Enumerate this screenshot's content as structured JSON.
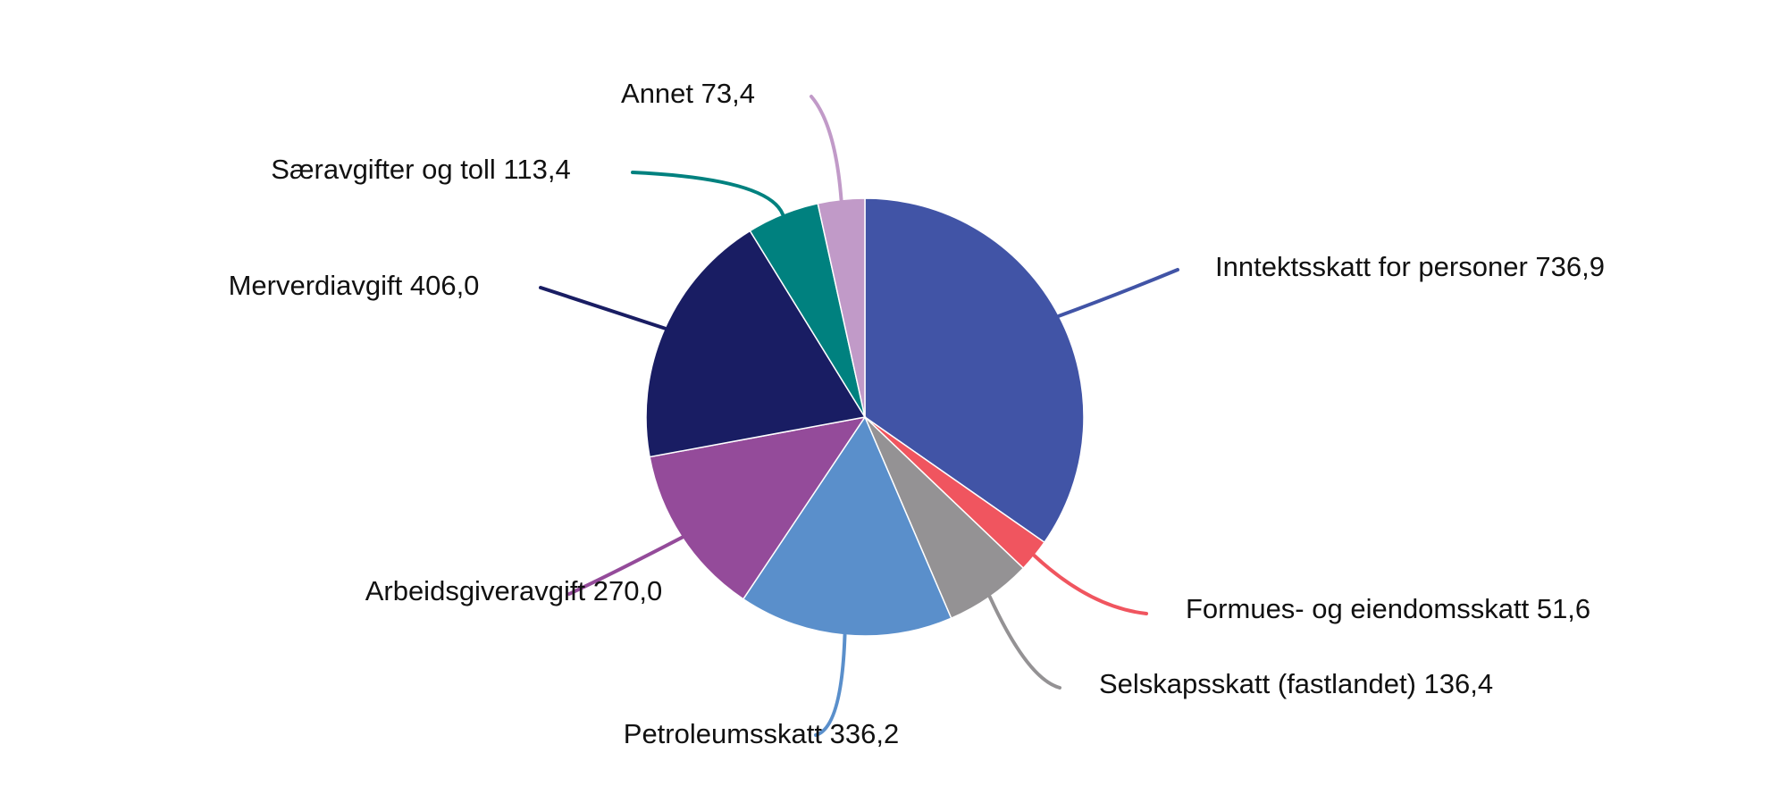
{
  "chart_data": {
    "type": "pie",
    "title": "",
    "start": "12 o'clock, clockwise",
    "slices": [
      {
        "label": "Inntektsskatt for personer",
        "value": 736.9,
        "value_text": "736,9",
        "color": "#4154a6"
      },
      {
        "label": "Formues- og eiendomsskatt",
        "value": 51.6,
        "value_text": "51,6",
        "color": "#f0555f"
      },
      {
        "label": "Selskapsskatt (fastlandet)",
        "value": 136.4,
        "value_text": "136,4",
        "color": "#949294"
      },
      {
        "label": "Petroleumsskatt",
        "value": 336.2,
        "value_text": "336,2",
        "color": "#5a8fcb"
      },
      {
        "label": "Arbeidsgiveravgift",
        "value": 270.0,
        "value_text": "270,0",
        "color": "#944b9a"
      },
      {
        "label": "Merverdiavgift",
        "value": 406.0,
        "value_text": "406,0",
        "color": "#191d63"
      },
      {
        "label": "Særavgifter og toll",
        "value": 113.4,
        "value_text": "113,4",
        "color": "#00817f"
      },
      {
        "label": "Annet",
        "value": 73.4,
        "value_text": "73,4",
        "color": "#c19ac8"
      }
    ]
  }
}
